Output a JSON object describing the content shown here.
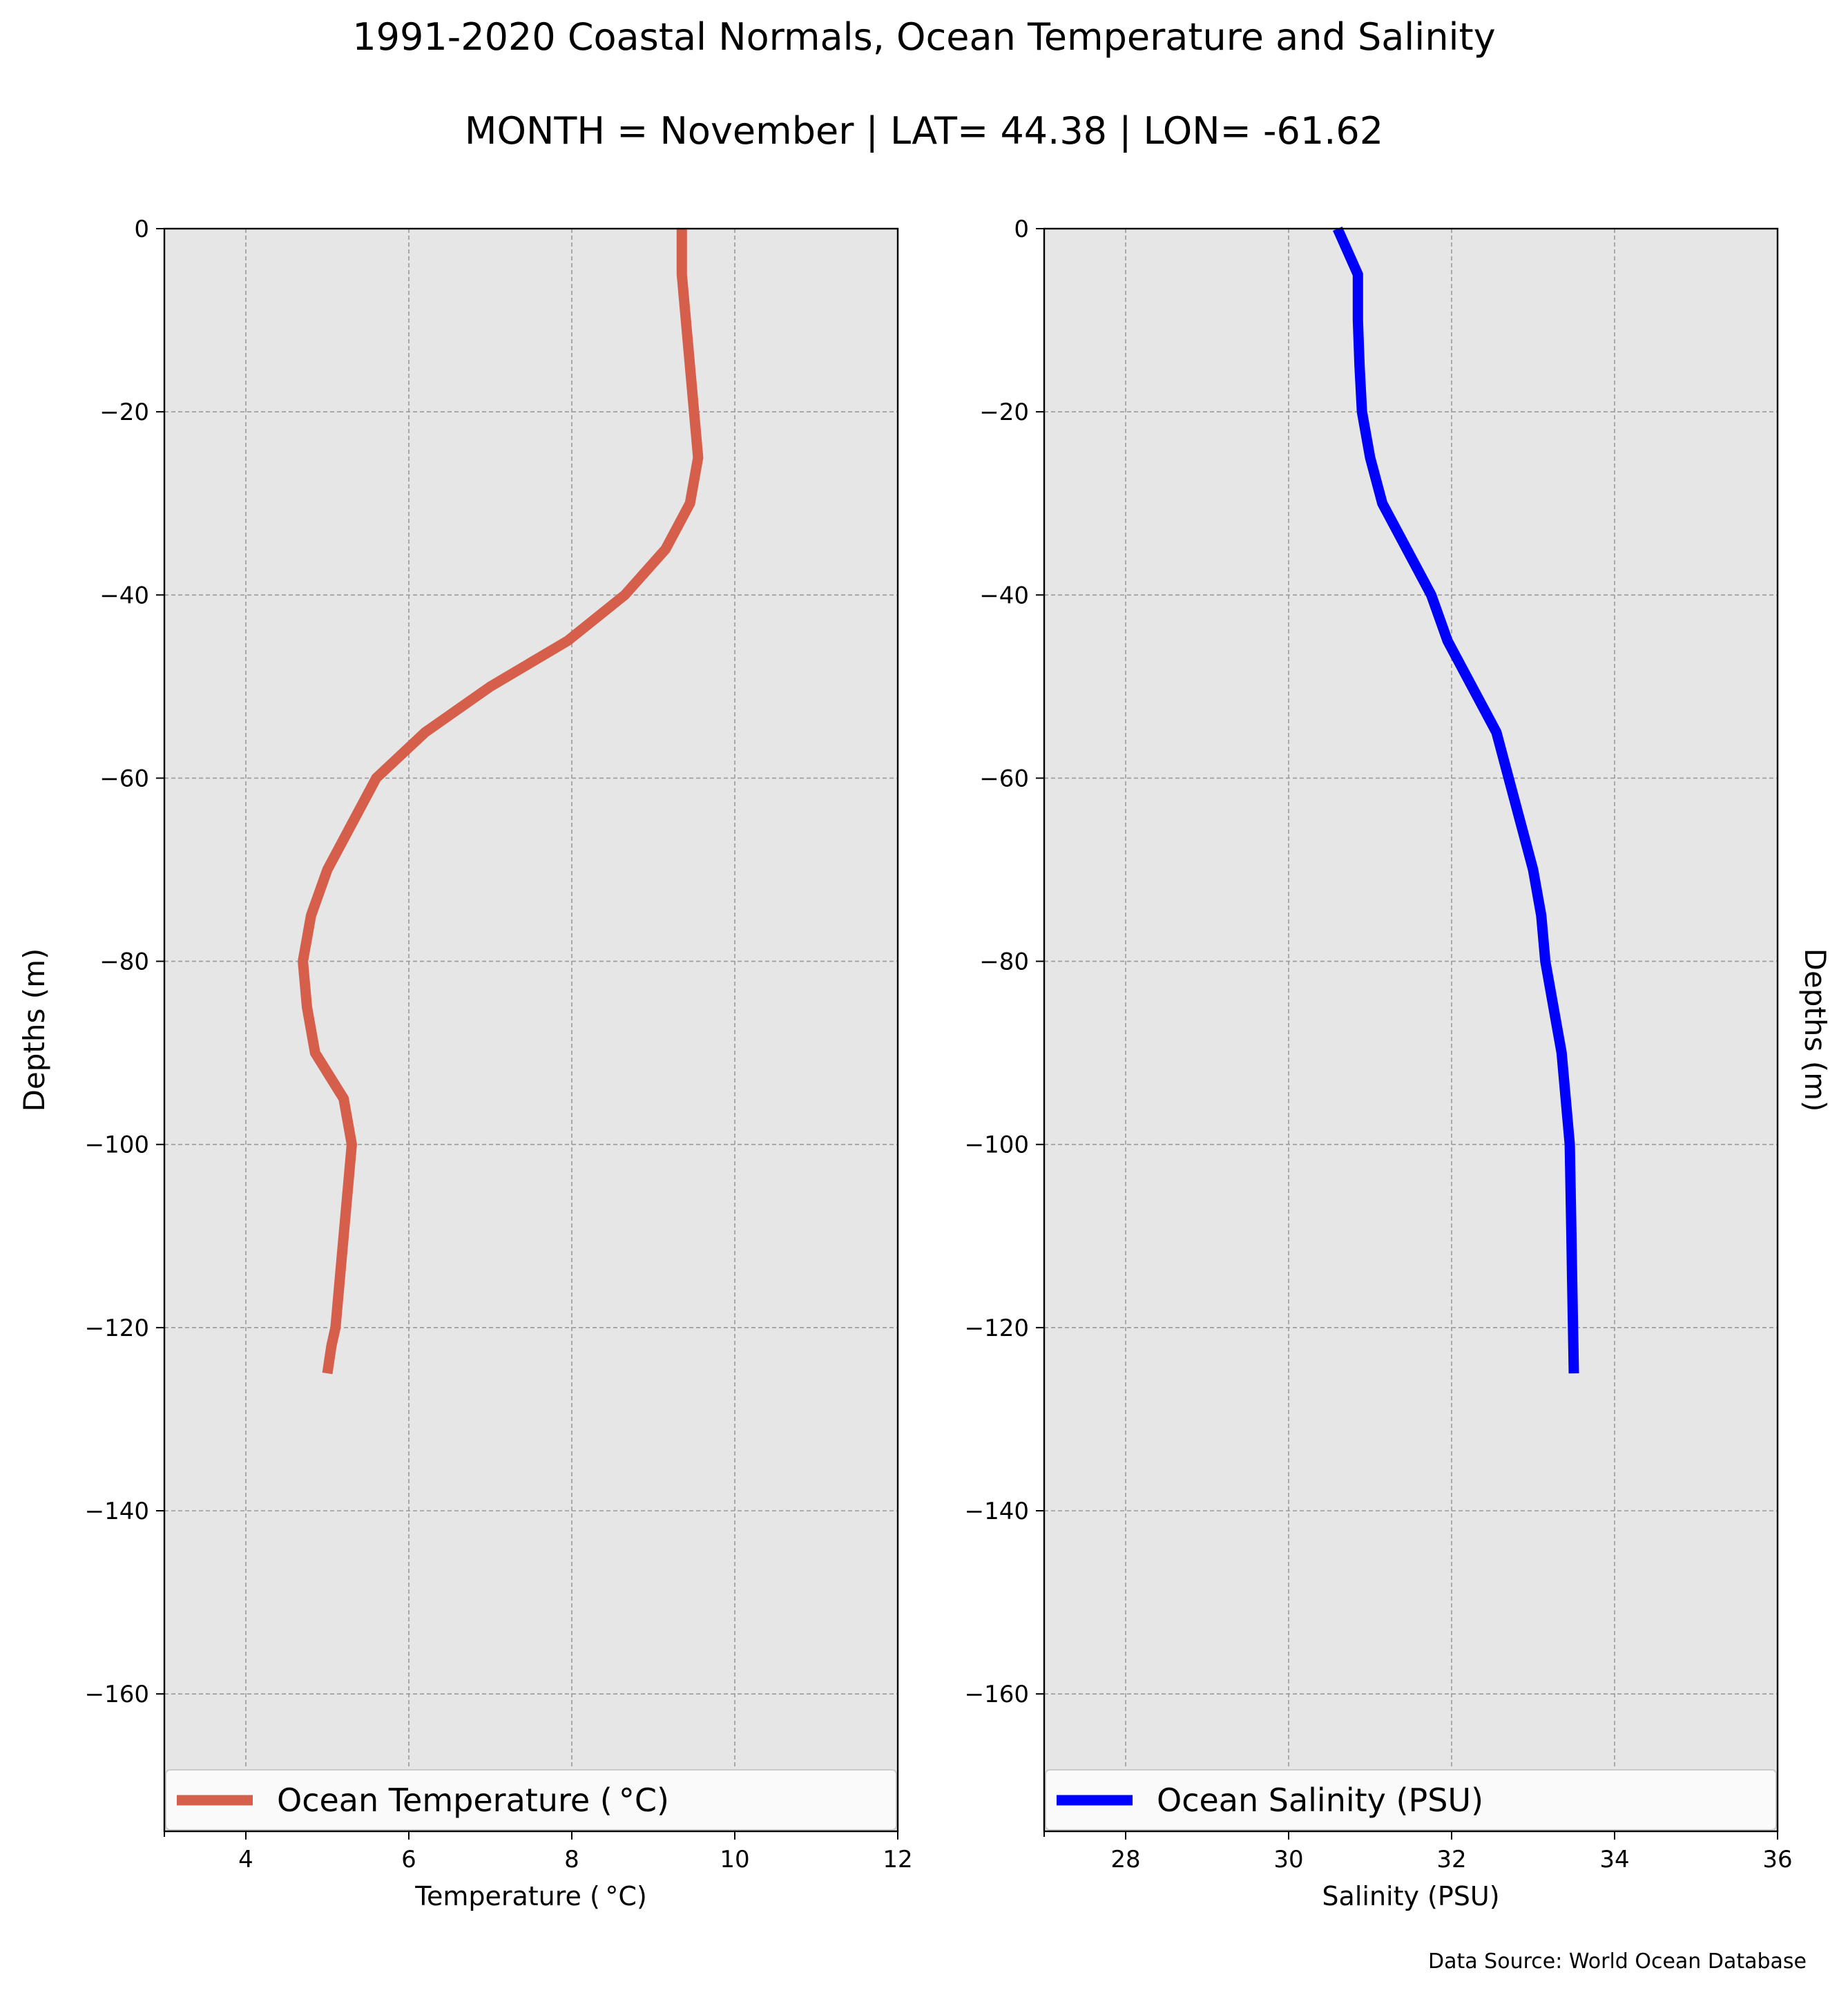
{
  "title": "1991-2020 Coastal Normals, Ocean Temperature and Salinity",
  "subtitle": "MONTH = November | LAT= 44.38 | LON= -61.62",
  "source": "Data Source: World Ocean Database",
  "chart_data": [
    {
      "type": "line",
      "xlabel": "Temperature ($^\\circ$C)",
      "xlabel_display": "Temperature ( °C)",
      "ylabel": "Depths (m)",
      "xlim": [
        3,
        12
      ],
      "ylim": [
        -175,
        0
      ],
      "xticks": [
        4,
        6,
        8,
        10,
        12
      ],
      "yticks": [
        0,
        -20,
        -40,
        -60,
        -80,
        -100,
        -120,
        -140,
        -160
      ],
      "ytick_labels": [
        "0",
        "−20",
        "−40",
        "−60",
        "−80",
        "−100",
        "−120",
        "−140",
        "−160"
      ],
      "grid": true,
      "legend_placement": "bottom",
      "color": "#d65f4c",
      "series": [
        {
          "name": "Ocean Temperature ( $^\\circ$C)",
          "name_display": "Ocean Temperature ( °C)",
          "x": [
            9.35,
            9.35,
            9.45,
            9.5,
            9.55,
            9.45,
            9.15,
            8.65,
            7.95,
            7.0,
            6.2,
            5.6,
            5.3,
            5.0,
            4.8,
            4.7,
            4.75,
            4.85,
            5.2,
            5.3,
            5.25,
            5.2,
            5.15,
            5.1,
            5.05,
            5.0
          ],
          "y": [
            0,
            -5,
            -15,
            -20,
            -25,
            -30,
            -35,
            -40,
            -45,
            -50,
            -55,
            -60,
            -65,
            -70,
            -75,
            -80,
            -85,
            -90,
            -95,
            -100,
            -105,
            -110,
            -115,
            -120,
            -122,
            -125
          ]
        }
      ]
    },
    {
      "type": "line",
      "xlabel": "Salinity (PSU)",
      "ylabel": "Depths (m)",
      "xlim": [
        27,
        36
      ],
      "ylim": [
        -175,
        0
      ],
      "xticks": [
        28,
        30,
        32,
        34,
        36
      ],
      "yticks": [
        0,
        -20,
        -40,
        -60,
        -80,
        -100,
        -120,
        -140,
        -160
      ],
      "ytick_labels": [
        "0",
        "−20",
        "−40",
        "−60",
        "−80",
        "−100",
        "−120",
        "−140",
        "−160"
      ],
      "grid": true,
      "legend_placement": "bottom",
      "color": "#0000ff",
      "series": [
        {
          "name": "Ocean Salinity (PSU)",
          "x": [
            30.6,
            30.85,
            30.85,
            30.87,
            30.9,
            31.0,
            31.15,
            31.45,
            31.75,
            31.95,
            32.25,
            32.55,
            32.7,
            32.85,
            33.0,
            33.1,
            33.15,
            33.25,
            33.35,
            33.45,
            33.46,
            33.47,
            33.48,
            33.49,
            33.5
          ],
          "y": [
            0,
            -5,
            -10,
            -15,
            -20,
            -25,
            -30,
            -35,
            -40,
            -45,
            -50,
            -55,
            -60,
            -65,
            -70,
            -75,
            -80,
            -85,
            -90,
            -100,
            -105,
            -110,
            -115,
            -120,
            -125
          ]
        }
      ]
    }
  ]
}
